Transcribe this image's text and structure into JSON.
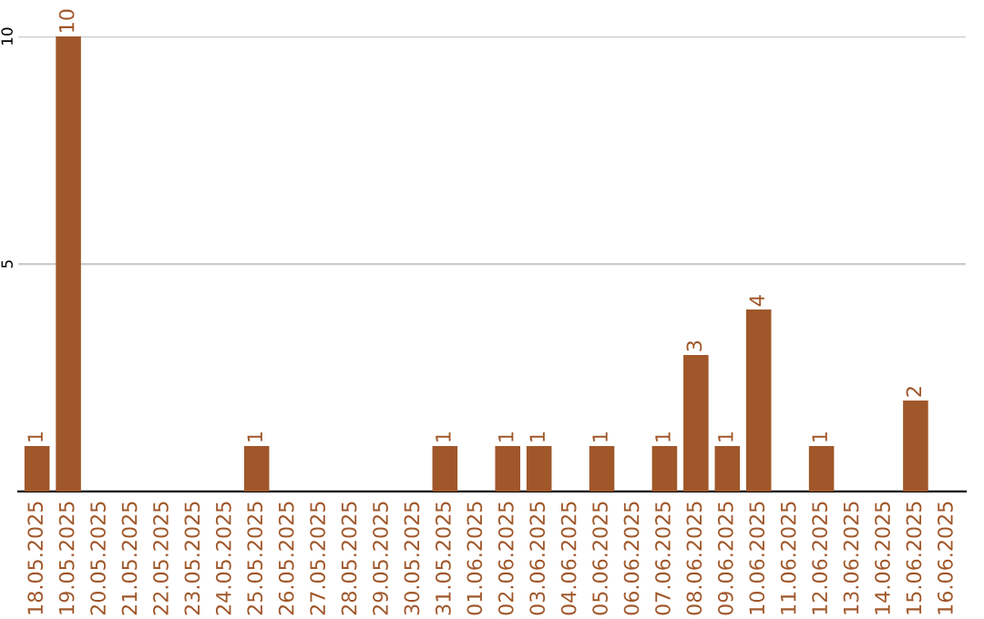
{
  "chart_data": {
    "type": "bar",
    "categories": [
      "18.05.2025",
      "19.05.2025",
      "20.05.2025",
      "21.05.2025",
      "22.05.2025",
      "23.05.2025",
      "24.05.2025",
      "25.05.2025",
      "26.05.2025",
      "27.05.2025",
      "28.05.2025",
      "29.05.2025",
      "30.05.2025",
      "31.05.2025",
      "01.06.2025",
      "02.06.2025",
      "03.06.2025",
      "04.06.2025",
      "05.06.2025",
      "06.06.2025",
      "07.06.2025",
      "08.06.2025",
      "09.06.2025",
      "10.06.2025",
      "11.06.2025",
      "12.06.2025",
      "13.06.2025",
      "14.06.2025",
      "15.06.2025",
      "16.06.2025"
    ],
    "values": [
      1,
      10,
      null,
      null,
      null,
      null,
      null,
      1,
      null,
      null,
      null,
      null,
      null,
      1,
      null,
      1,
      1,
      null,
      1,
      null,
      1,
      3,
      1,
      4,
      null,
      1,
      null,
      null,
      2,
      null
    ],
    "color": "#a0572a",
    "ylim": [
      0,
      10
    ],
    "yticks": [
      5,
      10
    ],
    "grid": "y",
    "data_labels": true
  }
}
